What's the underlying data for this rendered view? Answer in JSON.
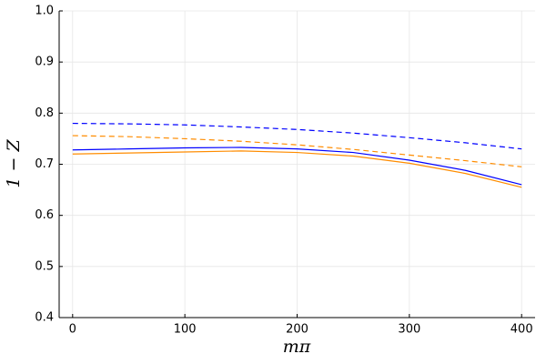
{
  "chart_data": {
    "type": "line",
    "xlabel": "mπ",
    "ylabel": "1 − Z",
    "x": [
      0,
      50,
      100,
      150,
      200,
      250,
      300,
      350,
      400
    ],
    "series": [
      {
        "color": "#0000ff",
        "style": "solid",
        "values": [
          0.728,
          0.73,
          0.732,
          0.733,
          0.73,
          0.723,
          0.708,
          0.688,
          0.66
        ]
      },
      {
        "color": "#ff8c00",
        "style": "solid",
        "values": [
          0.72,
          0.722,
          0.724,
          0.726,
          0.723,
          0.716,
          0.702,
          0.682,
          0.655
        ]
      },
      {
        "color": "#0000ff",
        "style": "dashed",
        "values": [
          0.78,
          0.779,
          0.777,
          0.773,
          0.768,
          0.761,
          0.752,
          0.742,
          0.73
        ]
      },
      {
        "color": "#ff8c00",
        "style": "dashed",
        "values": [
          0.756,
          0.754,
          0.75,
          0.745,
          0.738,
          0.729,
          0.718,
          0.707,
          0.695
        ]
      }
    ],
    "xlim": [
      -12,
      412
    ],
    "xticks": [
      0,
      100,
      200,
      300,
      400
    ],
    "ylim": [
      0.4,
      1.0
    ],
    "yticks": [
      0.4,
      0.5,
      0.6,
      0.7,
      0.8,
      0.9,
      {
        "value": 1.0,
        "label": "1.0"
      }
    ],
    "grid": true
  }
}
